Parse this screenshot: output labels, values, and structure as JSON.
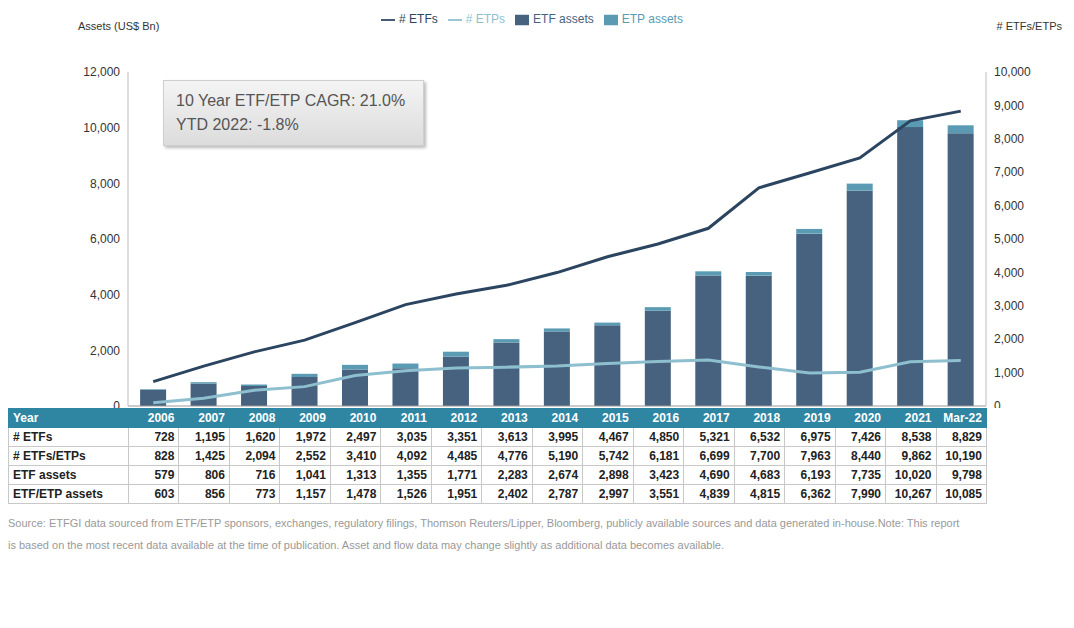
{
  "chart_data": {
    "type": "bar",
    "stacked": true,
    "grid": false,
    "legend": "top",
    "tick_labels": "y",
    "y_label": "Assets (US$ Bn)",
    "y2_label": "# ETFs/ETPs",
    "annotations": [
      "10 Year ETF/ETP CAGR: 21.0%",
      "YTD 2022: -1.8%"
    ],
    "categories": [
      "2006",
      "2007",
      "2008",
      "2009",
      "2010",
      "2011",
      "2012",
      "2013",
      "2014",
      "2015",
      "2016",
      "2017",
      "2018",
      "2019",
      "2020",
      "2021",
      "Mar-22"
    ],
    "ylim": [
      0,
      12000
    ],
    "yticks": [
      0,
      {
        "value": 2000,
        "label": "2,000"
      },
      {
        "value": 4000,
        "label": "4,000"
      },
      {
        "value": 6000,
        "label": "6,000"
      },
      {
        "value": 8000,
        "label": "8,000"
      },
      {
        "value": 10000,
        "label": "10,000"
      },
      {
        "value": 12000,
        "label": "12,000"
      }
    ],
    "y2lim": [
      0,
      10000
    ],
    "y2ticks": [
      0,
      {
        "value": 1000,
        "label": "1,000"
      },
      {
        "value": 2000,
        "label": "2,000"
      },
      {
        "value": 3000,
        "label": "3,000"
      },
      {
        "value": 4000,
        "label": "4,000"
      },
      {
        "value": 5000,
        "label": "5,000"
      },
      {
        "value": 6000,
        "label": "6,000"
      },
      {
        "value": 7000,
        "label": "7,000"
      },
      {
        "value": 8000,
        "label": "8,000"
      },
      {
        "value": 9000,
        "label": "9,000"
      },
      {
        "value": 10000,
        "label": "10,000"
      }
    ],
    "series": [
      {
        "name": "ETF assets",
        "type": "bar",
        "color": "#46627f",
        "values": [
          579,
          806,
          716,
          1041,
          1313,
          1355,
          1771,
          2283,
          2674,
          2898,
          3423,
          4690,
          4683,
          6193,
          7735,
          10020,
          9798
        ]
      },
      {
        "name": "ETP assets",
        "type": "bar",
        "color": "#5a9bb3",
        "values": [
          24,
          50,
          57,
          116,
          165,
          171,
          180,
          119,
          113,
          99,
          128,
          149,
          132,
          169,
          255,
          247,
          287
        ]
      },
      {
        "name": "# ETFs",
        "type": "line",
        "axis": "y2",
        "color": "#2b4560",
        "values": [
          728,
          1195,
          1620,
          1972,
          2497,
          3035,
          3351,
          3613,
          3995,
          4467,
          4850,
          5321,
          6532,
          6975,
          7426,
          8538,
          8829
        ]
      },
      {
        "name": "# ETPs",
        "type": "line",
        "axis": "y2",
        "color": "#8dbfcf",
        "values": [
          100,
          230,
          474,
          580,
          913,
          1057,
          1134,
          1163,
          1195,
          1275,
          1331,
          1378,
          1168,
          988,
          1014,
          1324,
          1361
        ]
      }
    ]
  },
  "table": {
    "header": "Year",
    "rows": [
      {
        "label": "# ETFs",
        "cells": [
          "728",
          "1,195",
          "1,620",
          "1,972",
          "2,497",
          "3,035",
          "3,351",
          "3,613",
          "3,995",
          "4,467",
          "4,850",
          "5,321",
          "6,532",
          "6,975",
          "7,426",
          "8,538",
          "8,829"
        ]
      },
      {
        "label": "# ETFs/ETPs",
        "cells": [
          "828",
          "1,425",
          "2,094",
          "2,552",
          "3,410",
          "4,092",
          "4,485",
          "4,776",
          "5,190",
          "5,742",
          "6,181",
          "6,699",
          "7,700",
          "7,963",
          "8,440",
          "9,862",
          "10,190"
        ]
      },
      {
        "label": "ETF assets",
        "cells": [
          "579",
          "806",
          "716",
          "1,041",
          "1,313",
          "1,355",
          "1,771",
          "2,283",
          "2,674",
          "2,898",
          "3,423",
          "4,690",
          "4,683",
          "6,193",
          "7,735",
          "10,020",
          "9,798"
        ]
      },
      {
        "label": "ETF/ETP assets",
        "cells": [
          "603",
          "856",
          "773",
          "1,157",
          "1,478",
          "1,526",
          "1,951",
          "2,402",
          "2,787",
          "2,997",
          "3,551",
          "4,839",
          "4,815",
          "6,362",
          "7,990",
          "10,267",
          "10,085"
        ]
      }
    ]
  },
  "note": "Source: ETFGI data sourced from ETF/ETP sponsors, exchanges, regulatory filings, Thomson Reuters/Lipper, Bloomberg, publicly available sources and data generated in-house.Note: This report is based on the most recent data available at the time of publication. Asset and flow data may change slightly as additional data becomes available."
}
